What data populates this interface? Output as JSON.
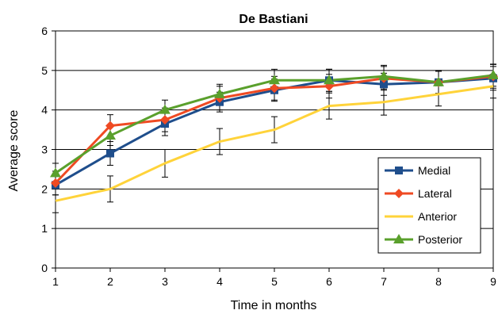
{
  "chart_data": {
    "type": "line",
    "title": "De Bastiani",
    "xlabel": "Time in months",
    "ylabel": "Average score",
    "xlim": [
      1,
      9
    ],
    "ylim": [
      0,
      6
    ],
    "x": [
      1,
      2,
      3,
      4,
      5,
      6,
      7,
      8,
      9
    ],
    "x_ticks": [
      "1",
      "2",
      "3",
      "4",
      "5",
      "6",
      "7",
      "8",
      "9"
    ],
    "y_ticks": [
      "0",
      "1",
      "2",
      "3",
      "4",
      "5",
      "6"
    ],
    "grid": "horizontal",
    "legend_position": "bottom-right",
    "series": [
      {
        "name": "Medial",
        "color": "#1f4e8c",
        "marker": "square",
        "values": [
          2.1,
          2.9,
          3.65,
          4.2,
          4.5,
          4.75,
          4.65,
          4.7,
          4.8
        ],
        "error": [
          0.25,
          0.3,
          0.3,
          0.25,
          0.28,
          0.28,
          0.28,
          0.28,
          0.3
        ]
      },
      {
        "name": "Lateral",
        "color": "#ef4a23",
        "marker": "diamond",
        "values": [
          2.15,
          3.6,
          3.75,
          4.3,
          4.55,
          4.6,
          4.8,
          4.7,
          4.85
        ],
        "error": [
          0.3,
          0.28,
          0.3,
          0.3,
          0.3,
          0.3,
          0.3,
          0.3,
          0.3
        ]
      },
      {
        "name": "Anterior",
        "color": "#ffd33a",
        "marker": "none",
        "values": [
          1.7,
          2.0,
          2.65,
          3.2,
          3.5,
          4.1,
          4.2,
          4.4,
          4.6
        ],
        "error": [
          0.3,
          0.33,
          0.35,
          0.33,
          0.33,
          0.33,
          0.33,
          0.3,
          0.3
        ]
      },
      {
        "name": "Posterior",
        "color": "#5aa02c",
        "marker": "triangle",
        "values": [
          2.4,
          3.35,
          4.0,
          4.4,
          4.75,
          4.75,
          4.85,
          4.7,
          4.88
        ],
        "error": [
          0.25,
          0.25,
          0.25,
          0.25,
          0.28,
          0.28,
          0.28,
          0.28,
          0.28
        ]
      }
    ]
  }
}
